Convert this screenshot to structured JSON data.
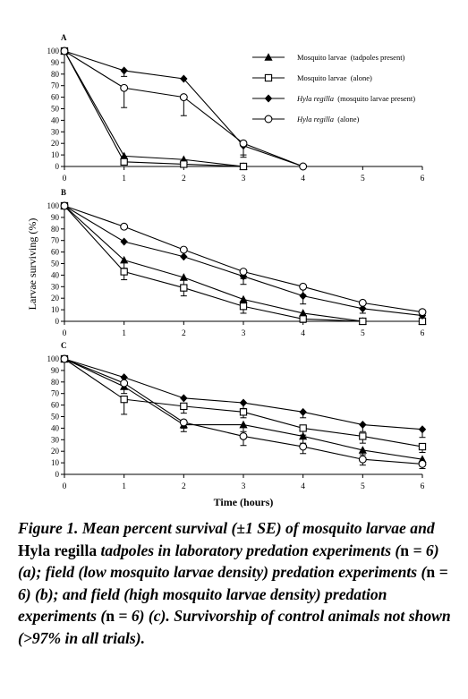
{
  "legend": [
    {
      "marker": "filled-triangle",
      "label_italic": "",
      "label_rest": "Mosquito larvae  (tadpoles present)"
    },
    {
      "marker": "open-square",
      "label_italic": "",
      "label_rest": "Mosquito larvae  (alone)"
    },
    {
      "marker": "filled-diamond",
      "label_italic": "Hyla regilla",
      "label_rest": "  (mosquito larvae present)"
    },
    {
      "marker": "open-circle",
      "label_italic": "Hyla regilla",
      "label_rest": "  (alone)"
    }
  ],
  "chart_data": [
    {
      "type": "line",
      "panel_label": "A",
      "xlabel": "",
      "ylabel": "",
      "x": [
        0,
        1,
        2,
        3,
        4,
        5,
        6
      ],
      "xlim": [
        0,
        6
      ],
      "ylim": [
        0,
        100
      ],
      "yticks": [
        0,
        10,
        20,
        30,
        40,
        50,
        60,
        70,
        80,
        90,
        100
      ],
      "grid": false,
      "legend_position": "top-right",
      "series": [
        {
          "name": "Mosquito larvae (tadpoles present)",
          "marker": "filled-triangle",
          "points": [
            [
              0,
              100
            ],
            [
              1,
              9
            ],
            [
              2,
              6
            ],
            [
              3,
              0
            ]
          ],
          "error": [
            0,
            5,
            0,
            0
          ]
        },
        {
          "name": "Mosquito larvae (alone)",
          "marker": "open-square",
          "points": [
            [
              0,
              100
            ],
            [
              1,
              4
            ],
            [
              2,
              2
            ],
            [
              3,
              0
            ]
          ],
          "error": [
            0,
            0,
            0,
            0
          ]
        },
        {
          "name": "Hyla regilla (mosquito larvae present)",
          "marker": "filled-diamond",
          "points": [
            [
              0,
              100
            ],
            [
              1,
              83
            ],
            [
              2,
              76
            ],
            [
              3,
              18
            ],
            [
              4,
              0
            ]
          ],
          "error": [
            0,
            5,
            0,
            10,
            0
          ]
        },
        {
          "name": "Hyla regilla (alone)",
          "marker": "open-circle",
          "points": [
            [
              0,
              100
            ],
            [
              1,
              68
            ],
            [
              2,
              60
            ],
            [
              3,
              20
            ],
            [
              4,
              0
            ]
          ],
          "error": [
            0,
            17,
            16,
            10,
            0
          ]
        }
      ]
    },
    {
      "type": "line",
      "panel_label": "B",
      "xlabel": "",
      "ylabel": "Larvae surviving (%)",
      "x": [
        0,
        1,
        2,
        3,
        4,
        5,
        6
      ],
      "xlim": [
        0,
        6
      ],
      "ylim": [
        0,
        100
      ],
      "yticks": [
        0,
        10,
        20,
        30,
        40,
        50,
        60,
        70,
        80,
        90,
        100
      ],
      "grid": false,
      "series": [
        {
          "name": "Mosquito larvae (tadpoles present)",
          "marker": "filled-triangle",
          "points": [
            [
              0,
              100
            ],
            [
              1,
              53
            ],
            [
              2,
              38
            ],
            [
              3,
              19
            ],
            [
              4,
              7
            ],
            [
              5,
              0
            ],
            [
              6,
              0
            ]
          ],
          "error": [
            0,
            7,
            7,
            6,
            4,
            0,
            0
          ]
        },
        {
          "name": "Mosquito larvae (alone)",
          "marker": "open-square",
          "points": [
            [
              0,
              100
            ],
            [
              1,
              43
            ],
            [
              2,
              29
            ],
            [
              3,
              13
            ],
            [
              4,
              2
            ],
            [
              5,
              0
            ],
            [
              6,
              0
            ]
          ],
          "error": [
            0,
            7,
            7,
            6,
            3,
            0,
            0
          ]
        },
        {
          "name": "Hyla regilla (mosquito larvae present)",
          "marker": "filled-diamond",
          "points": [
            [
              0,
              100
            ],
            [
              1,
              69
            ],
            [
              2,
              56
            ],
            [
              3,
              39
            ],
            [
              4,
              22
            ],
            [
              5,
              11
            ],
            [
              6,
              5
            ]
          ],
          "error": [
            0,
            0,
            0,
            7,
            7,
            4,
            2
          ]
        },
        {
          "name": "Hyla regilla (alone)",
          "marker": "open-circle",
          "points": [
            [
              0,
              100
            ],
            [
              1,
              82
            ],
            [
              2,
              62
            ],
            [
              3,
              43
            ],
            [
              4,
              30
            ],
            [
              5,
              16
            ],
            [
              6,
              8
            ]
          ],
          "error": [
            0,
            0,
            6,
            6,
            7,
            5,
            2
          ]
        }
      ]
    },
    {
      "type": "line",
      "panel_label": "C",
      "xlabel": "Time (hours)",
      "ylabel": "",
      "x": [
        0,
        1,
        2,
        3,
        4,
        5,
        6
      ],
      "xlim": [
        0,
        6
      ],
      "ylim": [
        0,
        100
      ],
      "yticks": [
        0,
        10,
        20,
        30,
        40,
        50,
        60,
        70,
        80,
        90,
        100
      ],
      "xticks": [
        0,
        1,
        2,
        3,
        4,
        5,
        6
      ],
      "grid": false,
      "series": [
        {
          "name": "Mosquito larvae (tadpoles present)",
          "marker": "filled-triangle",
          "points": [
            [
              0,
              100
            ],
            [
              1,
              76
            ],
            [
              2,
              43
            ],
            [
              3,
              43
            ],
            [
              4,
              33
            ],
            [
              5,
              21
            ],
            [
              6,
              13
            ]
          ],
          "error": [
            0,
            6,
            6,
            6,
            6,
            4,
            3
          ]
        },
        {
          "name": "Mosquito larvae (alone)",
          "marker": "open-square",
          "points": [
            [
              0,
              100
            ],
            [
              1,
              65
            ],
            [
              2,
              59
            ],
            [
              3,
              54
            ],
            [
              4,
              40
            ],
            [
              5,
              33
            ],
            [
              6,
              24
            ]
          ],
          "error": [
            0,
            13,
            6,
            5,
            6,
            6,
            5
          ]
        },
        {
          "name": "Hyla regilla (mosquito larvae present)",
          "marker": "filled-diamond",
          "points": [
            [
              0,
              100
            ],
            [
              1,
              84
            ],
            [
              2,
              66
            ],
            [
              3,
              62
            ],
            [
              4,
              54
            ],
            [
              5,
              43
            ],
            [
              6,
              39
            ]
          ],
          "error": [
            0,
            0,
            0,
            5,
            5,
            6,
            7
          ]
        },
        {
          "name": "Hyla regilla (alone)",
          "marker": "open-circle",
          "points": [
            [
              0,
              100
            ],
            [
              1,
              79
            ],
            [
              2,
              45
            ],
            [
              3,
              33
            ],
            [
              4,
              24
            ],
            [
              5,
              13
            ],
            [
              6,
              9
            ]
          ],
          "error": [
            0,
            0,
            5,
            8,
            6,
            5,
            4
          ]
        }
      ]
    }
  ],
  "caption": {
    "p1": "Figure 1.  Mean percent survival (",
    "pm": "±",
    "p2": "1 SE) of mosquito larvae and ",
    "hyla": "Hyla regilla",
    "p3": " tadpoles in laboratory predation experiments (",
    "n1": "n",
    "eq1": " = 6) (a); field (low mosquito larvae density) predation experiments (",
    "n2": "n",
    "eq2": " = 6) (b); and field (high mosquito larvae density) predation experiments (",
    "n3": "n",
    "eq3": " = 6) (c). Survivorship of control animals not shown (>97% in all trials)."
  }
}
